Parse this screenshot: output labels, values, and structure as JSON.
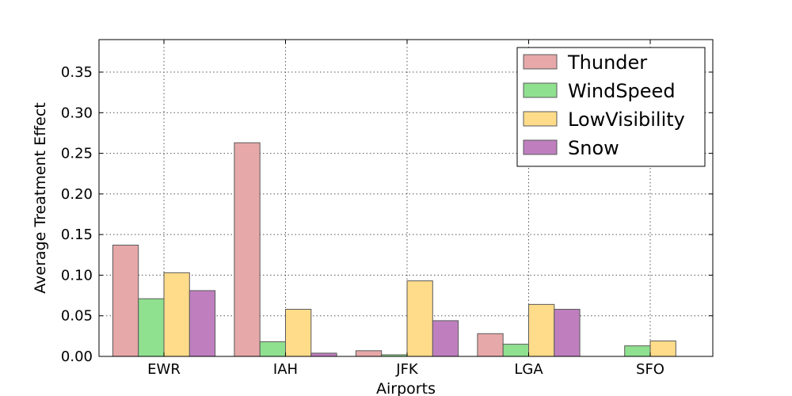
{
  "chart_data": {
    "type": "bar",
    "xlabel": "Airports",
    "ylabel": "Average Treatment Effect",
    "categories": [
      "EWR",
      "IAH",
      "JFK",
      "LGA",
      "SFO"
    ],
    "ylim": [
      0,
      0.39
    ],
    "yticks": [
      "0.00",
      "0.05",
      "0.10",
      "0.15",
      "0.20",
      "0.25",
      "0.30",
      "0.35"
    ],
    "grid": true,
    "legend_position": "top-right",
    "series": [
      {
        "name": "Thunder",
        "color": "#e6a8a8",
        "values": [
          0.137,
          0.263,
          0.007,
          0.028,
          0.0
        ]
      },
      {
        "name": "WindSpeed",
        "color": "#8fe08f",
        "values": [
          0.071,
          0.018,
          0.002,
          0.015,
          0.013
        ]
      },
      {
        "name": "LowVisibility",
        "color": "#ffdc8a",
        "values": [
          0.103,
          0.058,
          0.093,
          0.064,
          0.019
        ]
      },
      {
        "name": "Snow",
        "color": "#bf7fbf",
        "values": [
          0.081,
          0.004,
          0.044,
          0.058,
          0.0
        ]
      }
    ]
  }
}
